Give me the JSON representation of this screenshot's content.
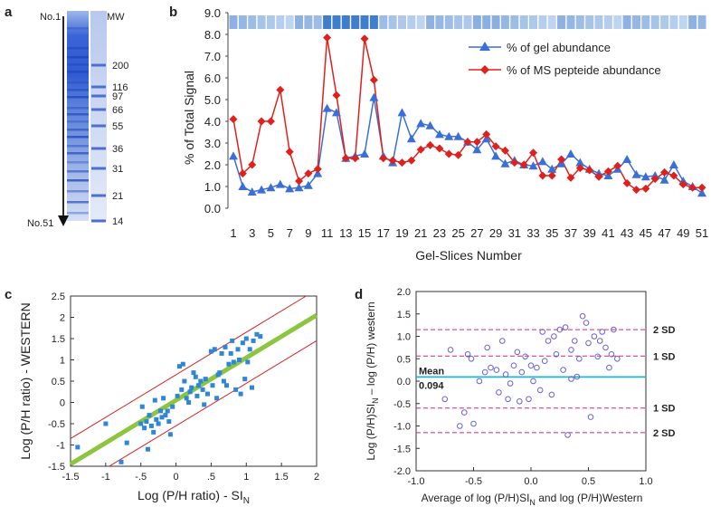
{
  "panels": {
    "a": {
      "label": "a",
      "top_label": "No.1",
      "bottom_label": "No.51",
      "mw_header": "MW",
      "mw_markers": [
        "200",
        "116",
        "97",
        "66",
        "55",
        "36",
        "31",
        "21",
        "14"
      ]
    },
    "b": {
      "label": "b"
    },
    "c": {
      "label": "c"
    },
    "d": {
      "label": "d"
    }
  },
  "chart_data": [
    {
      "panel": "b",
      "type": "line",
      "ylabel": "% of Total Signal",
      "xlabel": "Gel-Slices Number",
      "ylim": [
        0,
        9
      ],
      "yticks": [
        "0.0",
        "1.0",
        "2.0",
        "3.0",
        "4.0",
        "5.0",
        "6.0",
        "7.0",
        "8.0",
        "9.0"
      ],
      "xticks": [
        "1",
        "3",
        "5",
        "7",
        "9",
        "11",
        "13",
        "15",
        "17",
        "19",
        "21",
        "23",
        "25",
        "27",
        "29",
        "31",
        "33",
        "35",
        "37",
        "39",
        "41",
        "43",
        "45",
        "47",
        "49",
        "51"
      ],
      "x": [
        1,
        2,
        3,
        4,
        5,
        6,
        7,
        8,
        9,
        10,
        11,
        12,
        13,
        14,
        15,
        16,
        17,
        18,
        19,
        20,
        21,
        22,
        23,
        24,
        25,
        26,
        27,
        28,
        29,
        30,
        31,
        32,
        33,
        34,
        35,
        36,
        37,
        38,
        39,
        40,
        41,
        42,
        43,
        44,
        45,
        46,
        47,
        48,
        49,
        50,
        51
      ],
      "series": [
        {
          "name": "% of gel abundance",
          "color": "#3a6fd8",
          "marker": "triangle",
          "values": [
            2.4,
            1.0,
            0.75,
            0.85,
            0.95,
            1.1,
            0.9,
            0.95,
            1.05,
            1.6,
            4.6,
            4.4,
            2.3,
            2.4,
            2.5,
            5.1,
            2.4,
            2.1,
            4.4,
            3.2,
            3.9,
            3.8,
            3.4,
            3.3,
            3.3,
            3.05,
            2.7,
            3.2,
            2.4,
            2.05,
            2.2,
            2.0,
            1.95,
            2.15,
            1.8,
            2.05,
            2.5,
            2.1,
            1.8,
            1.6,
            1.5,
            1.8,
            2.25,
            1.55,
            1.45,
            1.5,
            1.3,
            2.0,
            1.25,
            1.0,
            0.7
          ]
        },
        {
          "name": "% of MS pepteide abundance",
          "color": "#e0201c",
          "marker": "diamond",
          "values": [
            4.1,
            1.6,
            2.0,
            4.0,
            4.0,
            5.45,
            2.6,
            1.25,
            1.6,
            1.8,
            7.85,
            5.2,
            2.3,
            2.3,
            7.8,
            5.9,
            2.3,
            2.2,
            2.1,
            2.2,
            2.7,
            2.9,
            2.75,
            2.5,
            2.45,
            3.05,
            3.05,
            3.4,
            2.85,
            2.65,
            2.1,
            2.0,
            2.55,
            1.5,
            1.5,
            2.25,
            1.4,
            1.85,
            1.75,
            1.45,
            1.7,
            1.95,
            1.15,
            0.85,
            0.9,
            1.35,
            1.65,
            1.5,
            1.1,
            0.95,
            0.95
          ]
        }
      ]
    },
    {
      "panel": "c",
      "type": "scatter",
      "xlabel": "Log (P/H ratio) - SI",
      "xlabel_sub": "N",
      "ylabel": "Log (P/H  ratio) - WESTERN",
      "xlim": [
        -1.5,
        2
      ],
      "ylim": [
        -1.5,
        2.5
      ],
      "xticks": [
        "-1.5",
        "-1",
        "-.5",
        "0",
        ".5",
        "1",
        "1.5",
        "2"
      ],
      "xtick_values": [
        -1.5,
        -1,
        -0.5,
        0,
        0.5,
        1,
        1.5,
        2
      ],
      "yticks": [
        "-1.5",
        "-1",
        "-0.5",
        "0",
        "0.5",
        "1",
        "1.5",
        "2",
        "2.5"
      ],
      "ytick_values": [
        -1.5,
        -1,
        -0.5,
        0,
        0.5,
        1,
        1.5,
        2,
        2.5
      ],
      "regression": {
        "slope": 1.0,
        "intercept": 0.05,
        "color": "#8cc63f"
      },
      "bands": {
        "offset": 0.6,
        "color": "#d62020"
      },
      "points_color": "#2f86d8",
      "points": [
        [
          -1.4,
          -1.05
        ],
        [
          -1.0,
          -0.5
        ],
        [
          -0.78,
          -1.4
        ],
        [
          -0.7,
          -0.95
        ],
        [
          -0.5,
          -0.5
        ],
        [
          -0.48,
          -0.1
        ],
        [
          -0.45,
          -0.6
        ],
        [
          -0.42,
          -0.45
        ],
        [
          -0.4,
          -1.1
        ],
        [
          -0.38,
          -0.3
        ],
        [
          -0.35,
          -0.55
        ],
        [
          -0.32,
          -0.7
        ],
        [
          -0.3,
          0.05
        ],
        [
          -0.28,
          -0.4
        ],
        [
          -0.25,
          -0.5
        ],
        [
          -0.22,
          -0.2
        ],
        [
          -0.2,
          -0.35
        ],
        [
          -0.18,
          0.1
        ],
        [
          -0.15,
          -0.3
        ],
        [
          -0.12,
          -0.2
        ],
        [
          -0.1,
          -0.45
        ],
        [
          -0.08,
          -0.75
        ],
        [
          -0.05,
          -0.1
        ],
        [
          0.02,
          0.15
        ],
        [
          0.05,
          0.85
        ],
        [
          0.08,
          0.3
        ],
        [
          0.1,
          0.9
        ],
        [
          0.12,
          0.5
        ],
        [
          0.15,
          0.1
        ],
        [
          0.18,
          0.0
        ],
        [
          0.2,
          0.25
        ],
        [
          0.22,
          0.35
        ],
        [
          0.25,
          0.7
        ],
        [
          0.28,
          0.6
        ],
        [
          0.3,
          0.15
        ],
        [
          0.32,
          0.4
        ],
        [
          0.35,
          0.5
        ],
        [
          0.38,
          0.3
        ],
        [
          0.4,
          -0.05
        ],
        [
          0.42,
          0.55
        ],
        [
          0.45,
          0.2
        ],
        [
          0.5,
          1.2
        ],
        [
          0.52,
          0.4
        ],
        [
          0.55,
          1.25
        ],
        [
          0.58,
          0.1
        ],
        [
          0.6,
          0.65
        ],
        [
          0.62,
          0.7
        ],
        [
          0.65,
          1.15
        ],
        [
          0.68,
          0.5
        ],
        [
          0.7,
          1.3
        ],
        [
          0.72,
          0.4
        ],
        [
          0.75,
          0.9
        ],
        [
          0.78,
          1.15
        ],
        [
          0.8,
          1.45
        ],
        [
          0.82,
          0.95
        ],
        [
          0.85,
          0.3
        ],
        [
          0.88,
          1.25
        ],
        [
          0.9,
          1.0
        ],
        [
          0.92,
          0.2
        ],
        [
          0.95,
          1.4
        ],
        [
          0.98,
          0.55
        ],
        [
          1.0,
          1.5
        ],
        [
          1.02,
          0.95
        ],
        [
          1.05,
          1.25
        ],
        [
          1.08,
          0.35
        ],
        [
          1.1,
          1.45
        ],
        [
          1.15,
          1.6
        ],
        [
          1.2,
          1.55
        ]
      ]
    },
    {
      "panel": "d",
      "type": "scatter",
      "chart_kind": "bland-altman",
      "xlabel": "Average of log (P/H)SI",
      "xlabel_sub": "N",
      "xlabel_tail": " and log (P/H)Western",
      "ylabel": "Log (P/H)SI",
      "ylabel_sub": "N",
      "ylabel_tail": " – log (P/H) western",
      "xlim": [
        -1.0,
        1.0
      ],
      "ylim": [
        -2.0,
        2.0
      ],
      "xticks": [
        "-1.0",
        "-0.5",
        "0.0",
        "0.5",
        "1.0"
      ],
      "xtick_values": [
        -1.0,
        -0.5,
        0.0,
        0.5,
        1.0
      ],
      "yticks": [
        "-2.0",
        "-1.5",
        "-1.0",
        "-0.5",
        "0.0",
        "0.5",
        "1.0",
        "1.5",
        "2.0"
      ],
      "ytick_values": [
        -2.0,
        -1.5,
        -1.0,
        -0.5,
        0.0,
        0.5,
        1.0,
        1.5,
        2.0
      ],
      "mean": {
        "value": 0.094,
        "label": "Mean",
        "value_label": "0.094",
        "color": "#19b8d6"
      },
      "sd_lines": [
        {
          "value": 1.15,
          "label": "2 SD"
        },
        {
          "value": 0.56,
          "label": "1 SD"
        },
        {
          "value": -0.6,
          "label": "1 SD"
        },
        {
          "value": -1.15,
          "label": "2 SD"
        }
      ],
      "sd_color": "#d4268a",
      "points_color": "#6a5fd8",
      "points": [
        [
          -0.75,
          -0.4
        ],
        [
          -0.7,
          0.7
        ],
        [
          -0.62,
          -1.0
        ],
        [
          -0.58,
          -0.7
        ],
        [
          -0.55,
          0.6
        ],
        [
          -0.52,
          0.5
        ],
        [
          -0.5,
          -0.95
        ],
        [
          -0.45,
          0.0
        ],
        [
          -0.4,
          0.2
        ],
        [
          -0.38,
          0.75
        ],
        [
          -0.35,
          0.3
        ],
        [
          -0.3,
          0.25
        ],
        [
          -0.28,
          -0.25
        ],
        [
          -0.25,
          0.9
        ],
        [
          -0.22,
          0.15
        ],
        [
          -0.2,
          -0.4
        ],
        [
          -0.18,
          -0.05
        ],
        [
          -0.15,
          0.35
        ],
        [
          -0.12,
          0.65
        ],
        [
          -0.1,
          -0.45
        ],
        [
          -0.08,
          0.2
        ],
        [
          -0.05,
          0.55
        ],
        [
          -0.02,
          -0.4
        ],
        [
          0.0,
          0.35
        ],
        [
          0.02,
          0.0
        ],
        [
          0.05,
          0.3
        ],
        [
          0.08,
          -0.2
        ],
        [
          0.1,
          1.1
        ],
        [
          0.12,
          0.45
        ],
        [
          0.15,
          0.9
        ],
        [
          0.18,
          -0.3
        ],
        [
          0.2,
          1.0
        ],
        [
          0.22,
          0.6
        ],
        [
          0.25,
          1.15
        ],
        [
          0.28,
          0.25
        ],
        [
          0.3,
          1.2
        ],
        [
          0.32,
          -1.2
        ],
        [
          0.35,
          0.7
        ],
        [
          0.38,
          0.9
        ],
        [
          0.4,
          0.1
        ],
        [
          0.42,
          0.5
        ],
        [
          0.45,
          1.45
        ],
        [
          0.48,
          1.3
        ],
        [
          0.5,
          0.85
        ],
        [
          0.52,
          -0.8
        ],
        [
          0.55,
          1.0
        ],
        [
          0.58,
          0.55
        ],
        [
          0.6,
          0.9
        ],
        [
          0.62,
          1.1
        ],
        [
          0.65,
          0.75
        ],
        [
          0.68,
          0.3
        ],
        [
          0.7,
          0.6
        ],
        [
          0.72,
          1.15
        ],
        [
          0.75,
          0.5
        ],
        [
          0.35,
          0.05
        ]
      ]
    }
  ],
  "legend": {
    "gel": "% of gel abundance",
    "ms": "% of MS pepteide abundance"
  }
}
